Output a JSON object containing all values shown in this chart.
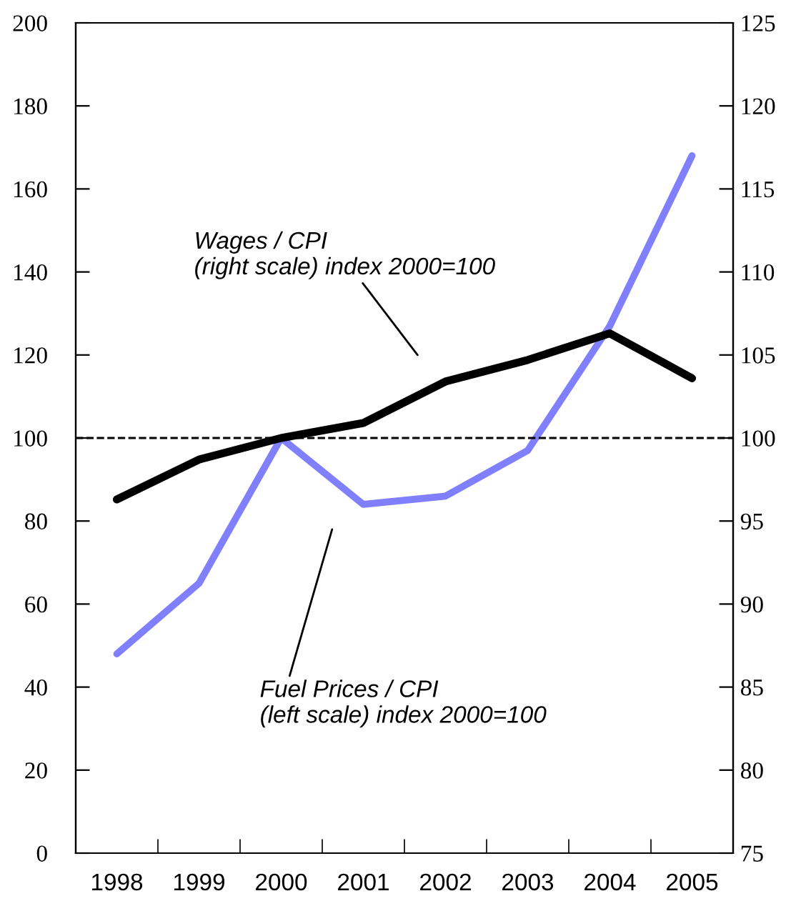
{
  "chart_data": {
    "type": "line",
    "categories": [
      "1998",
      "1999",
      "2000",
      "2001",
      "2002",
      "2003",
      "2004",
      "2005"
    ],
    "series": [
      {
        "color": "#8080ff",
        "values": [
          48,
          65,
          100,
          84,
          86,
          97,
          127,
          168
        ]
      },
      {
        "color": "#000000",
        "axis": "y2",
        "values": [
          96.3,
          98.7,
          100,
          100.9,
          103.4,
          104.7,
          106.3,
          103.6
        ]
      }
    ],
    "ylim": [
      0,
      200
    ],
    "yticks": [
      0,
      20,
      40,
      60,
      80,
      100,
      120,
      140,
      160,
      180,
      200
    ],
    "y2lim": [
      75,
      125
    ],
    "y2ticks": [
      75,
      80,
      85,
      90,
      95,
      100,
      105,
      110,
      115,
      120,
      125
    ],
    "ref_lines": [
      {
        "axis": "y",
        "value": 100,
        "color": "#000000",
        "line_style": "dashed"
      }
    ],
    "annotations": [
      "Wages / CPI\n(right scale) index 2000=100",
      "Fuel Prices / CPI\n(left scale) index 2000=100"
    ],
    "grid": false,
    "legend": false,
    "line_style": "solid",
    "marker": "none"
  }
}
